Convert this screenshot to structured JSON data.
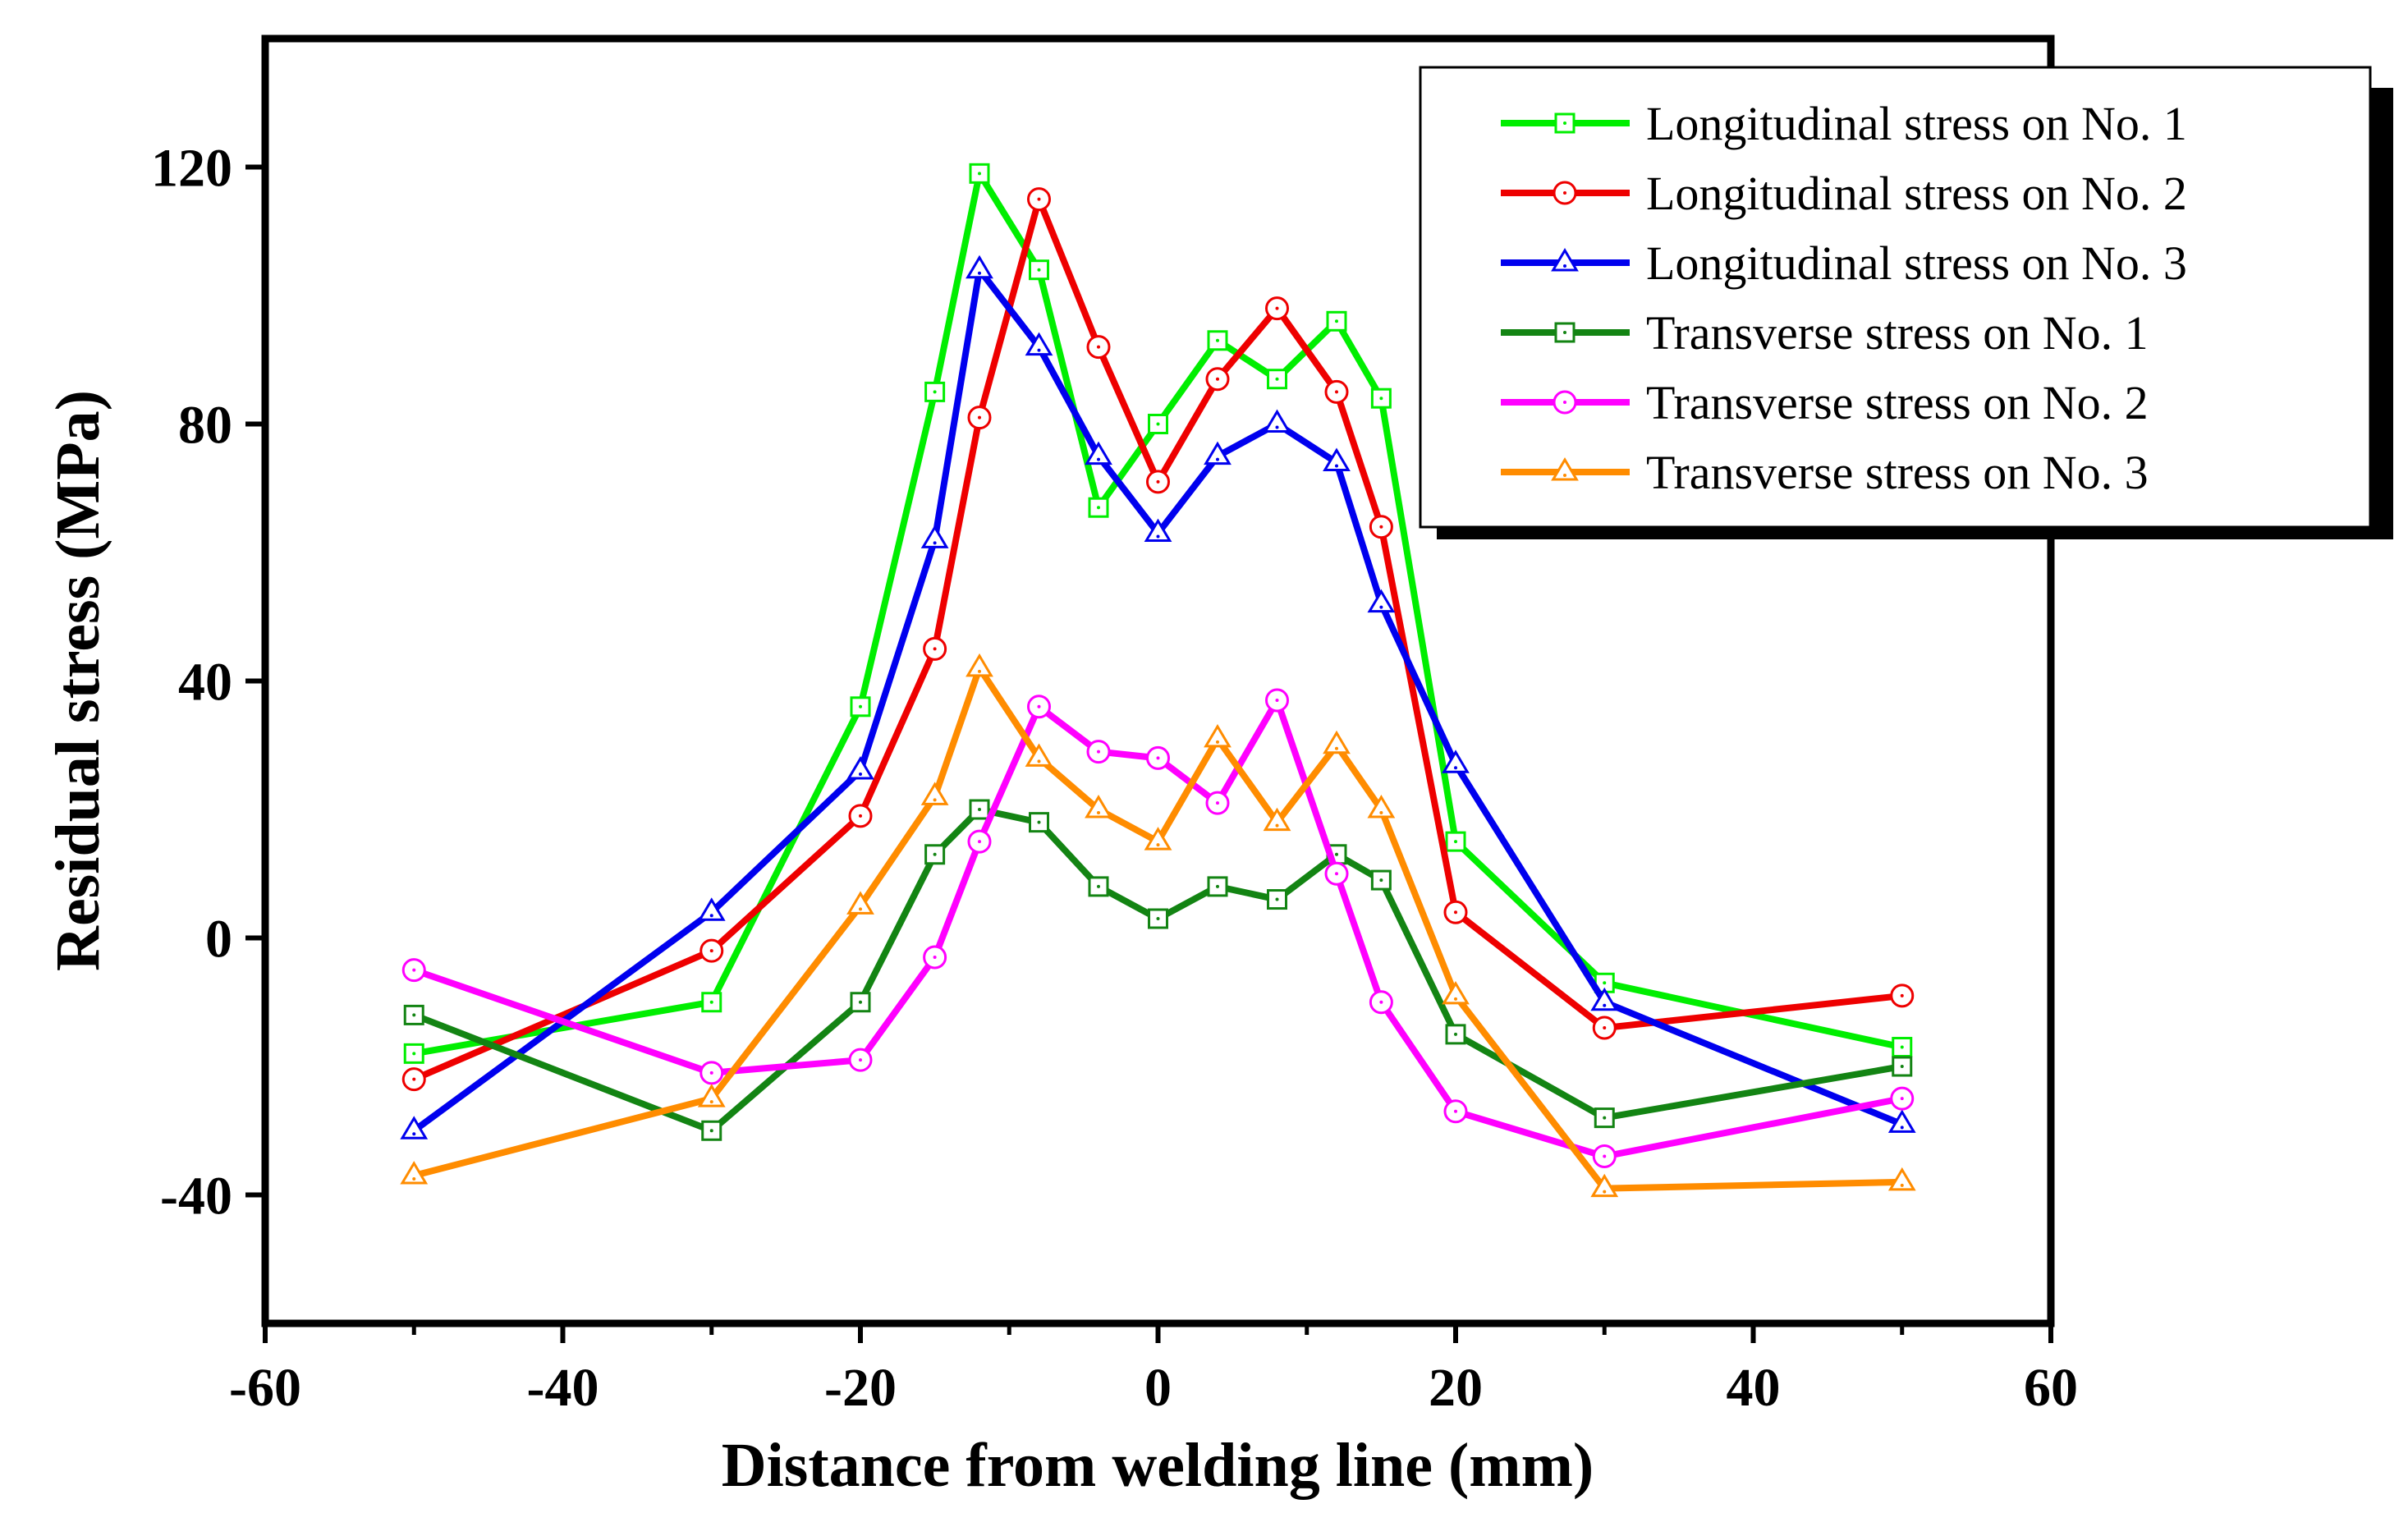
{
  "chart_data": {
    "type": "line",
    "title": "",
    "xlabel": "Distance from welding line (mm)",
    "ylabel": "Residual stress (MPa)",
    "xlim": [
      -60,
      60
    ],
    "ylim": [
      -60,
      140
    ],
    "xticks": [
      -60,
      -40,
      -20,
      0,
      20,
      40,
      60
    ],
    "yticks": [
      -40,
      0,
      40,
      80,
      120
    ],
    "grid": false,
    "legend_position": "top-right",
    "series": [
      {
        "name": "Longitudinal stress on No. 1",
        "color": "#00ee00",
        "marker": "square",
        "x": [
          -50,
          -30,
          -20,
          -15,
          -12,
          -8,
          -4,
          0,
          4,
          8,
          12,
          15,
          20,
          30,
          50
        ],
        "y": [
          -18,
          -10,
          36,
          85,
          119,
          104,
          67,
          80,
          93,
          87,
          96,
          84,
          15,
          -7,
          -17
        ]
      },
      {
        "name": "Longitudinal stress on No. 2",
        "color": "#ee0000",
        "marker": "circle",
        "x": [
          -50,
          -30,
          -20,
          -15,
          -12,
          -8,
          -4,
          0,
          4,
          8,
          12,
          15,
          20,
          30,
          50
        ],
        "y": [
          -22,
          -2,
          19,
          45,
          81,
          115,
          92,
          71,
          87,
          98,
          85,
          64,
          4,
          -14,
          -9
        ]
      },
      {
        "name": "Longitudinal stress on No. 3",
        "color": "#0000ee",
        "marker": "triangle",
        "x": [
          -50,
          -30,
          -20,
          -15,
          -12,
          -8,
          -4,
          0,
          4,
          8,
          12,
          15,
          20,
          30,
          50
        ],
        "y": [
          -30,
          4,
          26,
          62,
          104,
          92,
          75,
          63,
          75,
          80,
          74,
          52,
          27,
          -10,
          -29
        ]
      },
      {
        "name": "Transverse stress on No. 1",
        "color": "#138413",
        "marker": "square",
        "x": [
          -50,
          -30,
          -20,
          -15,
          -12,
          -8,
          -4,
          0,
          4,
          8,
          12,
          15,
          20,
          30,
          50
        ],
        "y": [
          -12,
          -30,
          -10,
          13,
          20,
          18,
          8,
          3,
          8,
          6,
          13,
          9,
          -15,
          -28,
          -20
        ]
      },
      {
        "name": "Transverse stress on No. 2",
        "color": "#ff00ff",
        "marker": "circle",
        "x": [
          -50,
          -30,
          -20,
          -15,
          -12,
          -8,
          -4,
          0,
          4,
          8,
          12,
          15,
          20,
          30,
          50
        ],
        "y": [
          -5,
          -21,
          -19,
          -3,
          15,
          36,
          29,
          28,
          21,
          37,
          10,
          -10,
          -27,
          -34,
          -25
        ]
      },
      {
        "name": "Transverse stress on No. 3",
        "color": "#ff8c00",
        "marker": "triangle",
        "x": [
          -50,
          -30,
          -20,
          -15,
          -12,
          -8,
          -4,
          0,
          4,
          8,
          12,
          15,
          20,
          30,
          50
        ],
        "y": [
          -37,
          -25,
          5,
          22,
          42,
          28,
          20,
          15,
          31,
          18,
          30,
          20,
          -9,
          -39,
          -38
        ]
      }
    ]
  }
}
